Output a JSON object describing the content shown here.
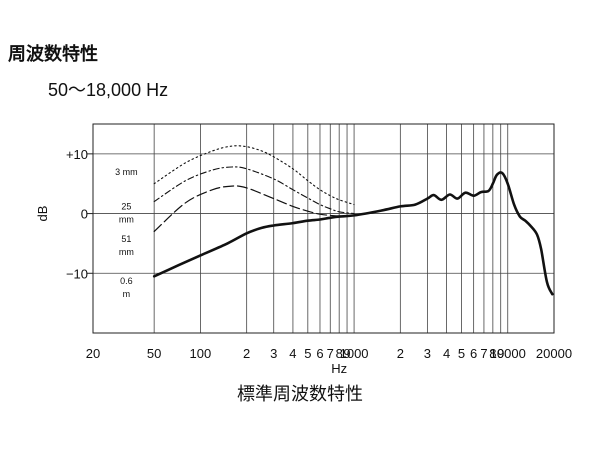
{
  "header": {
    "title": "周波数特性",
    "subtitle": "50～18,000 Hz"
  },
  "caption": "標準周波数特性",
  "chart_data": {
    "type": "line",
    "xscale": "log",
    "xlim": [
      20,
      20000
    ],
    "ylim": [
      -20,
      15
    ],
    "xlabel": "Hz",
    "ylabel": "dB",
    "x_ticks": [
      {
        "value": 20,
        "label": "20"
      },
      {
        "value": 50,
        "label": "50"
      },
      {
        "value": 100,
        "label": "100"
      },
      {
        "value": 200,
        "label": "2"
      },
      {
        "value": 300,
        "label": "3"
      },
      {
        "value": 400,
        "label": "4"
      },
      {
        "value": 500,
        "label": "5"
      },
      {
        "value": 600,
        "label": "6"
      },
      {
        "value": 700,
        "label": "7"
      },
      {
        "value": 800,
        "label": "8"
      },
      {
        "value": 900,
        "label": "9"
      },
      {
        "value": 1000,
        "label": "1000"
      },
      {
        "value": 2000,
        "label": "2"
      },
      {
        "value": 3000,
        "label": "3"
      },
      {
        "value": 4000,
        "label": "4"
      },
      {
        "value": 5000,
        "label": "5"
      },
      {
        "value": 6000,
        "label": "6"
      },
      {
        "value": 7000,
        "label": "7"
      },
      {
        "value": 8000,
        "label": "8"
      },
      {
        "value": 9000,
        "label": "9"
      },
      {
        "value": 10000,
        "label": "10000"
      },
      {
        "value": 20000,
        "label": "20000"
      }
    ],
    "y_ticks": [
      {
        "value": 10,
        "label": "+10"
      },
      {
        "value": 0,
        "label": "0"
      },
      {
        "value": -10,
        "label": "−10"
      }
    ],
    "y_gridlines": [
      10,
      0,
      -10
    ],
    "grid": true,
    "series": [
      {
        "name": "3 mm",
        "style": "dotted",
        "points": [
          [
            50,
            5
          ],
          [
            80,
            8.5
          ],
          [
            120,
            10.5
          ],
          [
            160,
            11.3
          ],
          [
            200,
            11.2
          ],
          [
            250,
            10.5
          ],
          [
            300,
            9.5
          ],
          [
            400,
            7.5
          ],
          [
            500,
            5.5
          ],
          [
            600,
            4
          ],
          [
            700,
            3
          ],
          [
            800,
            2.3
          ],
          [
            1000,
            1.5
          ]
        ]
      },
      {
        "name": "25 mm",
        "style": "dashdot",
        "points": [
          [
            50,
            2
          ],
          [
            80,
            5.5
          ],
          [
            120,
            7.3
          ],
          [
            160,
            7.8
          ],
          [
            200,
            7.5
          ],
          [
            300,
            5.8
          ],
          [
            400,
            4
          ],
          [
            500,
            2.6
          ],
          [
            600,
            1.5
          ],
          [
            700,
            0.8
          ],
          [
            800,
            0.3
          ],
          [
            1000,
            0
          ]
        ]
      },
      {
        "name": "51 mm",
        "style": "longdash",
        "points": [
          [
            50,
            -3
          ],
          [
            80,
            1.8
          ],
          [
            120,
            4
          ],
          [
            160,
            4.6
          ],
          [
            200,
            4.3
          ],
          [
            300,
            2.5
          ],
          [
            400,
            1.2
          ],
          [
            500,
            0.4
          ],
          [
            600,
            -0.1
          ],
          [
            700,
            -0.3
          ],
          [
            800,
            -0.4
          ],
          [
            1000,
            -0.3
          ]
        ]
      },
      {
        "name": "0.6 m",
        "style": "solid",
        "points": [
          [
            50,
            -10.5
          ],
          [
            70,
            -8.8
          ],
          [
            100,
            -7
          ],
          [
            150,
            -5
          ],
          [
            200,
            -3.3
          ],
          [
            250,
            -2.4
          ],
          [
            300,
            -2
          ],
          [
            400,
            -1.6
          ],
          [
            500,
            -1.2
          ],
          [
            600,
            -1
          ],
          [
            700,
            -0.7
          ],
          [
            800,
            -0.5
          ],
          [
            1000,
            -0.3
          ],
          [
            1500,
            0.5
          ],
          [
            2000,
            1.2
          ],
          [
            2500,
            1.5
          ],
          [
            3000,
            2.5
          ],
          [
            3300,
            3.1
          ],
          [
            3700,
            2.3
          ],
          [
            4200,
            3.2
          ],
          [
            4700,
            2.5
          ],
          [
            5300,
            3.5
          ],
          [
            6000,
            3
          ],
          [
            6700,
            3.6
          ],
          [
            7500,
            3.8
          ],
          [
            8000,
            5
          ],
          [
            8500,
            6.5
          ],
          [
            9200,
            6.8
          ],
          [
            10000,
            5
          ],
          [
            11000,
            1.5
          ],
          [
            12000,
            -0.5
          ],
          [
            13000,
            -1.2
          ],
          [
            14000,
            -2
          ],
          [
            15500,
            -3.5
          ],
          [
            16500,
            -6
          ],
          [
            18000,
            -11.5
          ],
          [
            19500,
            -13.5
          ]
        ]
      }
    ],
    "annotations": [
      {
        "text": "3 mm",
        "x": 33,
        "y": 7
      },
      {
        "text": "25",
        "x": 33,
        "y": 1.2
      },
      {
        "text": "mm",
        "x": 33,
        "y": -1
      },
      {
        "text": "51",
        "x": 33,
        "y": -4.3
      },
      {
        "text": "mm",
        "x": 33,
        "y": -6.4
      },
      {
        "text": "0.6",
        "x": 33,
        "y": -11.3
      },
      {
        "text": "m",
        "x": 33,
        "y": -13.5
      }
    ]
  }
}
